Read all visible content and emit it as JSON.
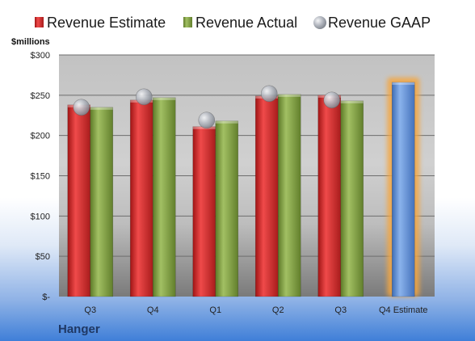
{
  "chart_data": {
    "type": "bar",
    "categories": [
      "Q3",
      "Q4",
      "Q1",
      "Q2",
      "Q3",
      "Q4 Estimate"
    ],
    "series": [
      {
        "name": "Revenue Estimate",
        "values": [
          238,
          244,
          211,
          249,
          250,
          null
        ],
        "color": "#d42a2a"
      },
      {
        "name": "Revenue Actual",
        "values": [
          235,
          247,
          218,
          251,
          243,
          null
        ],
        "color": "#7f9e3f"
      },
      {
        "name": "Revenue GAAP",
        "values": [
          235,
          248,
          219,
          252,
          244,
          null
        ],
        "color": "#b8bcc4",
        "marker": "sphere"
      },
      {
        "name": "",
        "values": [
          null,
          null,
          null,
          null,
          null,
          266
        ],
        "color": "#5f8fd6",
        "highlight": "#f4a640"
      }
    ],
    "ylabel": "$millions",
    "ylim": [
      0,
      300
    ],
    "yticks": [
      0,
      50,
      100,
      150,
      200,
      250,
      300
    ],
    "ytick_labels": [
      "$-",
      "$50",
      "$100",
      "$150",
      "$200",
      "$250",
      "$300"
    ],
    "grid": true,
    "legend_position": "top"
  },
  "company_label": "Hanger"
}
